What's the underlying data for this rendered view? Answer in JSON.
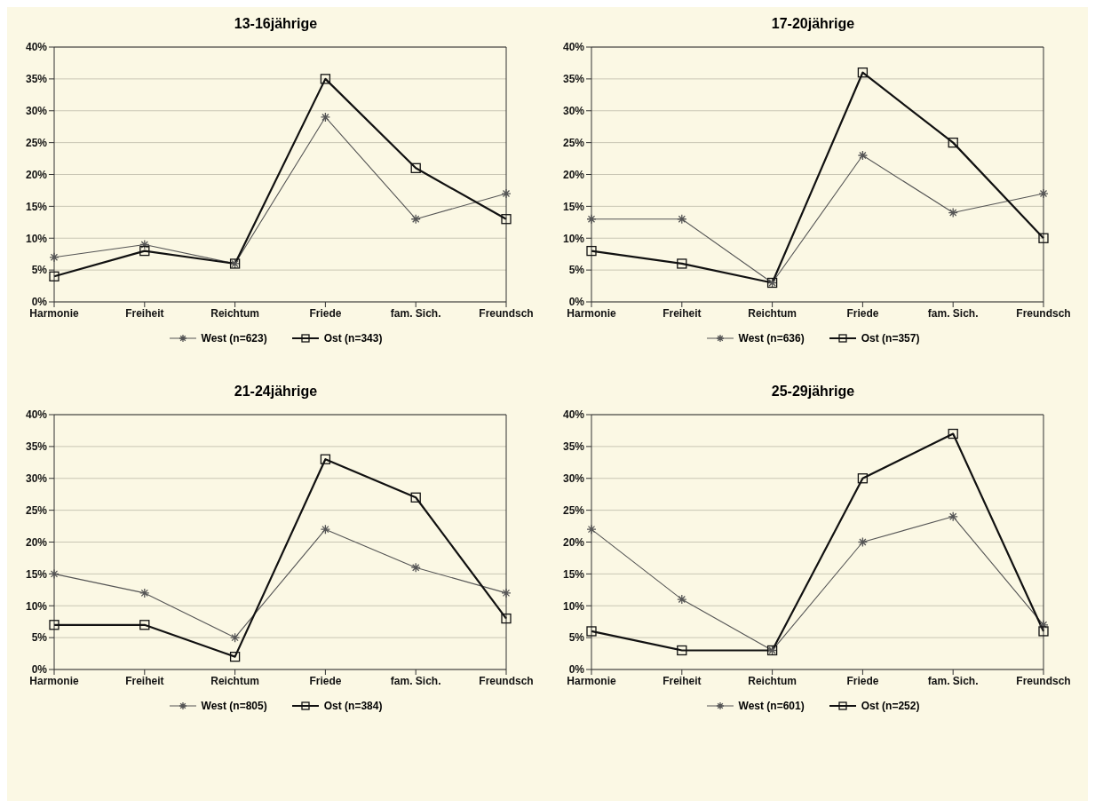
{
  "chart_data": [
    {
      "type": "line",
      "title": "13-16jährige",
      "categories": [
        "Harmonie",
        "Freiheit",
        "Reichtum",
        "Friede",
        "fam. Sich.",
        "Freundsch"
      ],
      "series": [
        {
          "name": "West (n=623)",
          "color": "#555555",
          "marker": "cross",
          "values": [
            7,
            9,
            6,
            29,
            13,
            17
          ]
        },
        {
          "name": "Ost (n=343)",
          "color": "#111111",
          "marker": "square",
          "values": [
            4,
            8,
            6,
            35,
            21,
            13
          ]
        }
      ],
      "ylim": [
        0,
        40
      ],
      "yticks": [
        {
          "value": 0,
          "label": "0%"
        },
        {
          "value": 5,
          "label": "5%"
        },
        {
          "value": 10,
          "label": "10%"
        },
        {
          "value": 15,
          "label": "15%"
        },
        {
          "value": 20,
          "label": "20%"
        },
        {
          "value": 25,
          "label": "25%"
        },
        {
          "value": 30,
          "label": "30%"
        },
        {
          "value": 35,
          "label": "35%"
        },
        {
          "value": 40,
          "label": "40%"
        }
      ],
      "grid": "y",
      "legend": "bottom"
    },
    {
      "type": "line",
      "title": "17-20jährige",
      "categories": [
        "Harmonie",
        "Freiheit",
        "Reichtum",
        "Friede",
        "fam. Sich.",
        "Freundsch"
      ],
      "series": [
        {
          "name": "West (n=636)",
          "color": "#555555",
          "marker": "cross",
          "values": [
            13,
            13,
            3,
            23,
            14,
            17
          ]
        },
        {
          "name": "Ost (n=357)",
          "color": "#111111",
          "marker": "square",
          "values": [
            8,
            6,
            3,
            36,
            25,
            10
          ]
        }
      ],
      "ylim": [
        0,
        40
      ],
      "yticks": [
        {
          "value": 0,
          "label": "0%"
        },
        {
          "value": 5,
          "label": "5%"
        },
        {
          "value": 10,
          "label": "10%"
        },
        {
          "value": 15,
          "label": "15%"
        },
        {
          "value": 20,
          "label": "20%"
        },
        {
          "value": 25,
          "label": "25%"
        },
        {
          "value": 30,
          "label": "30%"
        },
        {
          "value": 35,
          "label": "35%"
        },
        {
          "value": 40,
          "label": "40%"
        }
      ],
      "grid": "y",
      "legend": "bottom"
    },
    {
      "type": "line",
      "title": "21-24jährige",
      "categories": [
        "Harmonie",
        "Freiheit",
        "Reichtum",
        "Friede",
        "fam. Sich.",
        "Freundsch"
      ],
      "series": [
        {
          "name": "West (n=805)",
          "color": "#555555",
          "marker": "cross",
          "values": [
            15,
            12,
            5,
            22,
            16,
            12
          ]
        },
        {
          "name": "Ost (n=384)",
          "color": "#111111",
          "marker": "square",
          "values": [
            7,
            7,
            2,
            33,
            27,
            8
          ]
        }
      ],
      "ylim": [
        0,
        40
      ],
      "yticks": [
        {
          "value": 0,
          "label": "0%"
        },
        {
          "value": 5,
          "label": "5%"
        },
        {
          "value": 10,
          "label": "10%"
        },
        {
          "value": 15,
          "label": "15%"
        },
        {
          "value": 20,
          "label": "20%"
        },
        {
          "value": 25,
          "label": "25%"
        },
        {
          "value": 30,
          "label": "30%"
        },
        {
          "value": 35,
          "label": "35%"
        },
        {
          "value": 40,
          "label": "40%"
        }
      ],
      "grid": "y",
      "legend": "bottom"
    },
    {
      "type": "line",
      "title": "25-29jährige",
      "categories": [
        "Harmonie",
        "Freiheit",
        "Reichtum",
        "Friede",
        "fam. Sich.",
        "Freundsch"
      ],
      "series": [
        {
          "name": "West (n=601)",
          "color": "#555555",
          "marker": "cross",
          "values": [
            22,
            11,
            3,
            20,
            24,
            7
          ]
        },
        {
          "name": "Ost (n=252)",
          "color": "#111111",
          "marker": "square",
          "values": [
            6,
            3,
            3,
            30,
            37,
            6
          ]
        }
      ],
      "ylim": [
        0,
        40
      ],
      "yticks": [
        {
          "value": 0,
          "label": "0%"
        },
        {
          "value": 5,
          "label": "5%"
        },
        {
          "value": 10,
          "label": "10%"
        },
        {
          "value": 15,
          "label": "15%"
        },
        {
          "value": 20,
          "label": "20%"
        },
        {
          "value": 25,
          "label": "25%"
        },
        {
          "value": 30,
          "label": "30%"
        },
        {
          "value": 35,
          "label": "35%"
        },
        {
          "value": 40,
          "label": "40%"
        }
      ],
      "grid": "y",
      "legend": "bottom"
    }
  ]
}
